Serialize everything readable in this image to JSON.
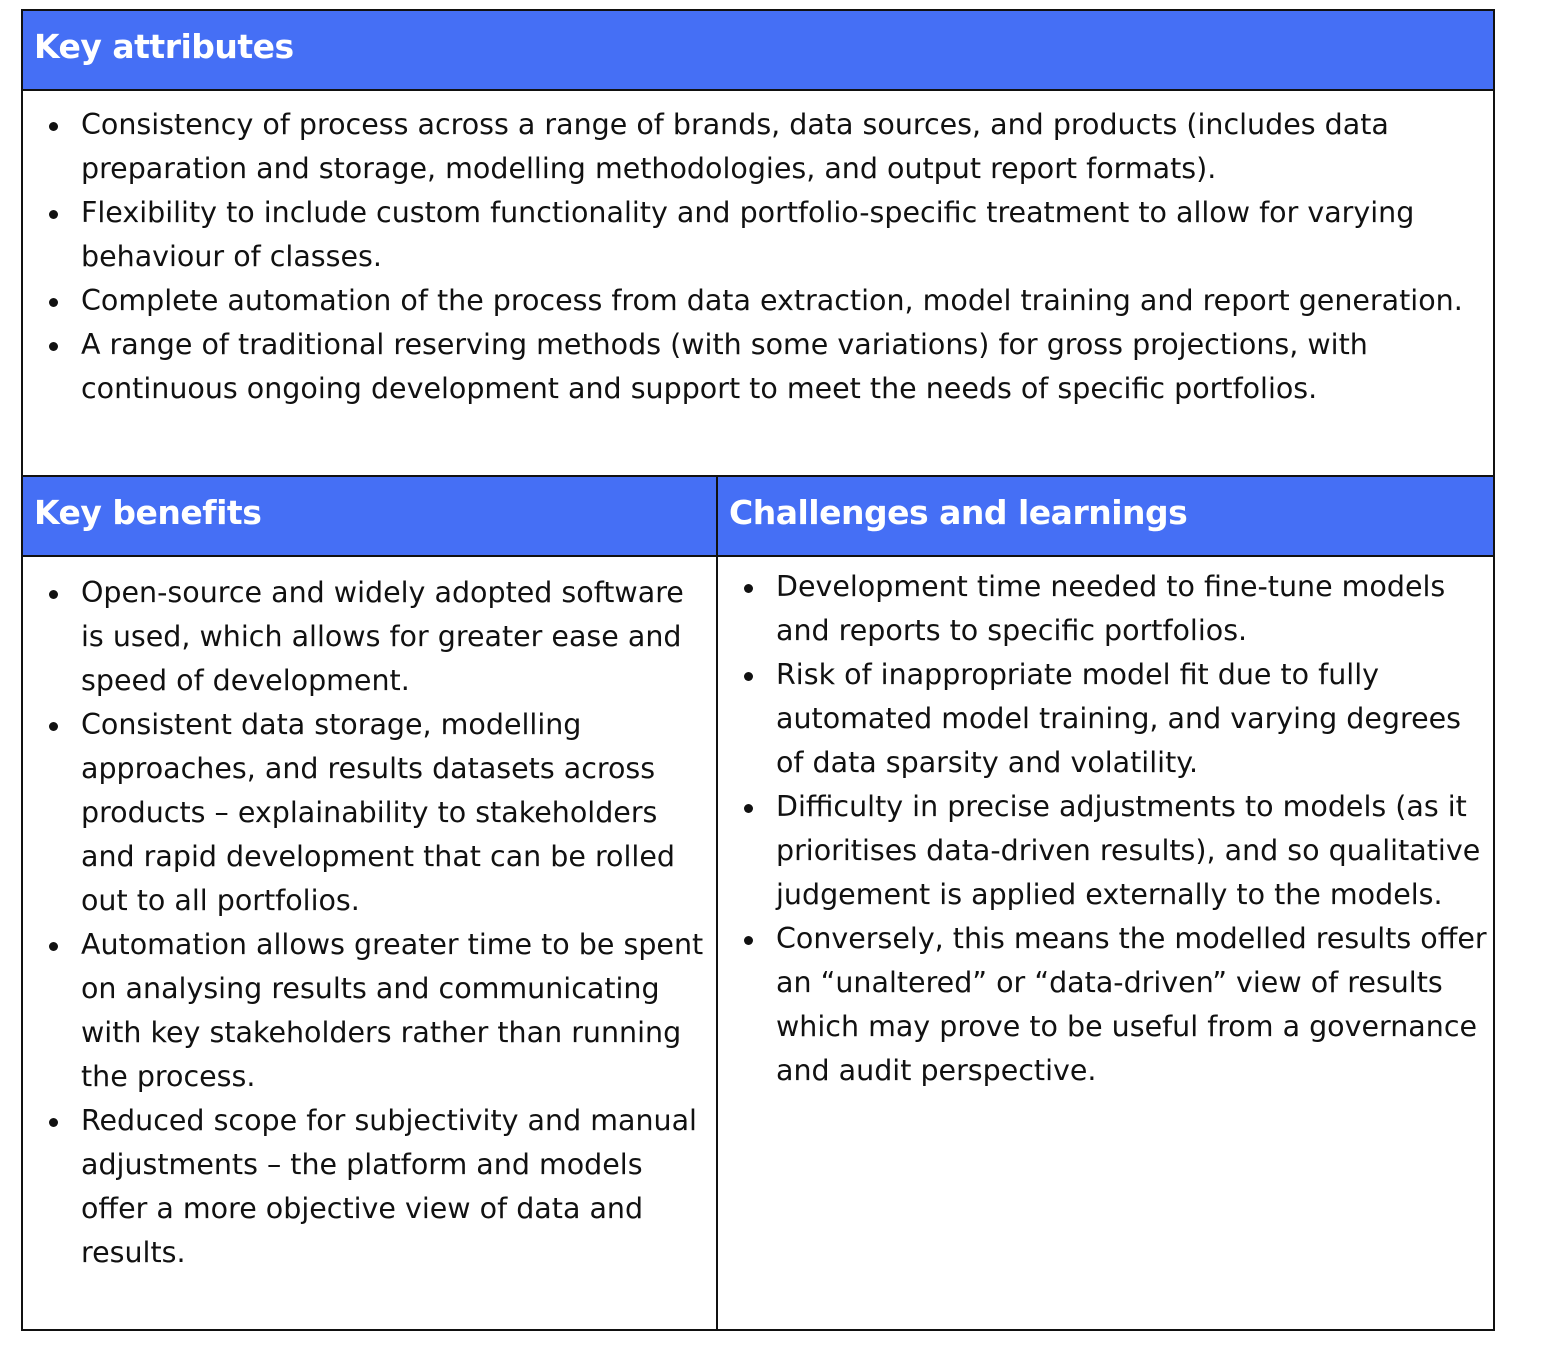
{
  "key_attributes": {
    "title": "Key attributes",
    "items": [
      "Consistency of process across a range of brands, data sources, and products (includes data preparation and storage, modelling methodologies, and output report formats).",
      "Flexibility to include custom functionality and portfolio-specific treatment to allow for varying behaviour of classes.",
      "Complete automation of the process from data extraction, model training and report generation.",
      "A range of traditional reserving methods (with some variations) for gross projections, with continuous ongoing development and support to meet the needs of specific portfolios."
    ]
  },
  "key_benefits": {
    "title": "Key benefits",
    "items": [
      "Open-source and widely adopted software is used, which allows for greater ease and speed of development.",
      "Consistent data storage, modelling approaches, and results datasets across products – explainability to stakeholders and rapid development that can be rolled out to all portfolios.",
      "Automation allows greater time to be spent on analysing results and communicating with key stakeholders rather than running the process.",
      "Reduced scope for subjectivity and manual adjustments – the platform and models offer a more objective view of data and results."
    ]
  },
  "challenges": {
    "title": "Challenges and learnings",
    "items": [
      "Development time needed to fine-tune models and reports to specific portfolios.",
      "Risk of inappropriate model fit due to fully automated model training, and varying degrees of data sparsity and volatility.",
      "Difficulty in precise adjustments to models (as it prioritises data-driven results), and so qualitative judgement is applied externally to the models.",
      "Conversely, this means the modelled results offer an “unaltered” or “data-driven” view of results which may prove to be useful from a governance and audit perspective."
    ]
  },
  "colors": {
    "header_bg": "#456ff5",
    "header_text": "#ffffff",
    "border": "#111111"
  }
}
